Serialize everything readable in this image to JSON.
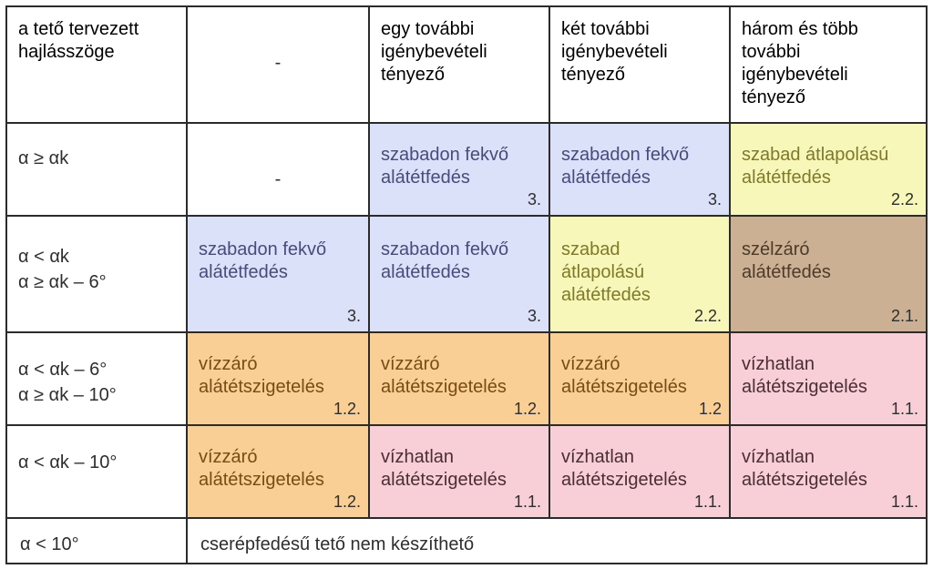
{
  "header": {
    "col1": "a tető tervezett\nhajlásszöge",
    "col2": "-",
    "col3": "egy további\nigénybevételi\ntényező",
    "col4": "két további\nigénybevételi\ntényező",
    "col5": "három és több\ntovábbi\nigénybevételi\ntényező"
  },
  "rows": [
    {
      "label": "α ≥ αk",
      "cells": [
        {
          "text": "-",
          "num": ""
        },
        {
          "text": "szabadon fekvő\nalátétfedés",
          "num": "3."
        },
        {
          "text": "szabadon fekvő\nalátétfedés",
          "num": "3."
        },
        {
          "text": "szabad átlapolású\nalátétfedés",
          "num": "2.2."
        }
      ]
    },
    {
      "label": "α < αk\nα ≥ αk – 6°",
      "cells": [
        {
          "text": "szabadon fekvő\nalátétfedés",
          "num": "3."
        },
        {
          "text": "szabadon fekvő\nalátétfedés",
          "num": "3."
        },
        {
          "text": "szabad\nátlapolású\nalátétfedés",
          "num": "2.2."
        },
        {
          "text": "szélzáró\nalátétfedés",
          "num": "2.1."
        }
      ]
    },
    {
      "label": "α < αk – 6°\nα ≥ αk – 10°",
      "cells": [
        {
          "text": "vízzáró\nalátétszigetelés",
          "num": "1.2."
        },
        {
          "text": "vízzáró\nalátétszigetelés",
          "num": "1.2."
        },
        {
          "text": "vízzáró\nalátétszigetelés",
          "num": "1.2"
        },
        {
          "text": "vízhatlan\nalátétszigetelés",
          "num": "1.1."
        }
      ]
    },
    {
      "label": "α < αk – 10°",
      "cells": [
        {
          "text": "vízzáró\nalátétszigetelés",
          "num": "1.2."
        },
        {
          "text": "vízhatlan\nalátétszigetelés",
          "num": "1.1."
        },
        {
          "text": "vízhatlan\nalátétszigetelés",
          "num": "1.1."
        },
        {
          "text": "vízhatlan\nalátétszigetelés",
          "num": "1.1."
        }
      ]
    }
  ],
  "footer": {
    "label": "α < 10°",
    "text": "cserépfedésű tető nem készíthető"
  },
  "colors": {
    "blue": "#dbe1f8",
    "yellow": "#f7f7b9",
    "brown": "#cbb093",
    "orange": "#f9cf96",
    "pink": "#f8cfd6"
  }
}
